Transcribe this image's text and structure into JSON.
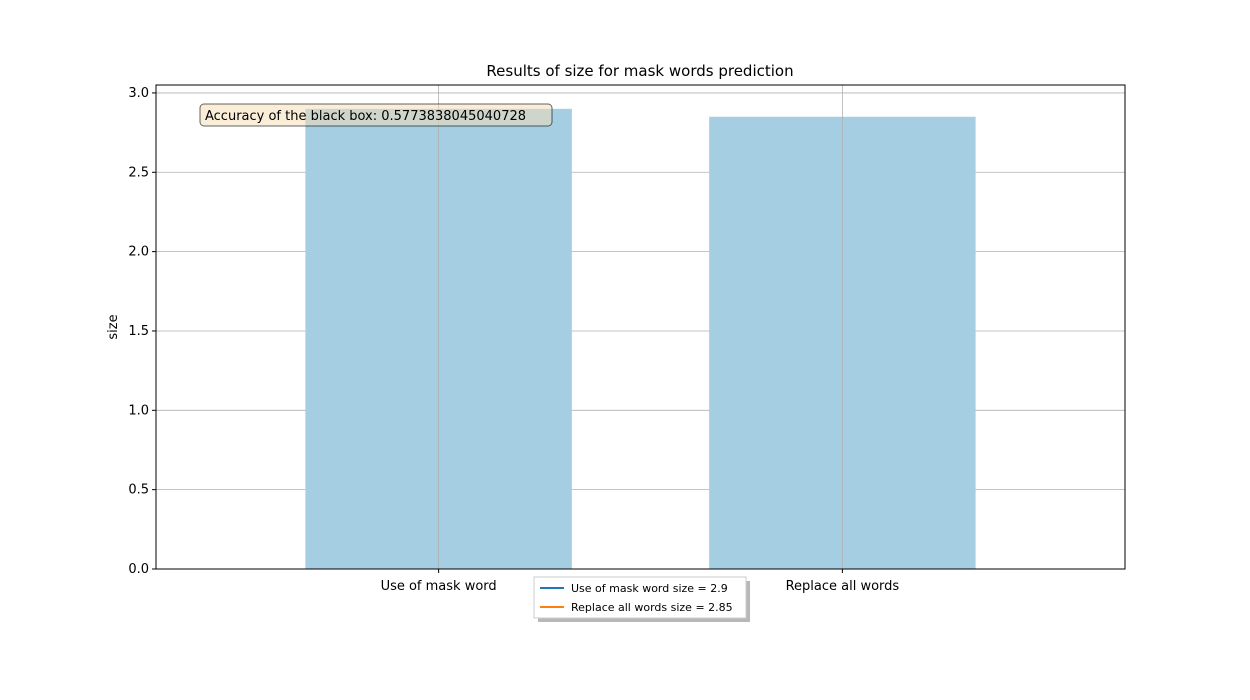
{
  "chart_data": {
    "type": "bar",
    "title": "Results of size for mask words prediction",
    "xlabel": "",
    "ylabel": "size",
    "categories": [
      "Use of mask word",
      "Replace all words"
    ],
    "values": [
      2.9,
      2.85
    ],
    "ylim": [
      0,
      3.05
    ],
    "yticks": [
      "0.0",
      "0.5",
      "1.0",
      "1.5",
      "2.0",
      "2.5",
      "3.0"
    ],
    "grid": true,
    "bar_color": "#a6cee3",
    "annotation": "Accuracy of the black box: 0.5773838045040728",
    "legend": {
      "placement": "bottom-center",
      "entries": [
        {
          "label": "Use of mask word size = 2.9",
          "color": "#1f77b4"
        },
        {
          "label": "Replace all words size = 2.85",
          "color": "#ff7f0e"
        }
      ]
    }
  }
}
